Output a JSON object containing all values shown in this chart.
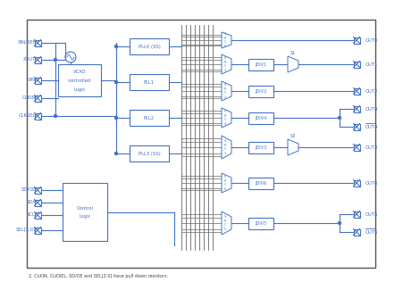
{
  "bg_color": "#ffffff",
  "line_color": "#4472c4",
  "text_color": "#4472c4",
  "gray_color": "#888888",
  "footnote": "2. CLKIN, CLKSEL, SD/OE and SEL[2:0] have pull down resistors.",
  "inputs_left": [
    "XIN/REF",
    "XOUT",
    "VIN",
    "CLKIN",
    "CLKSEL"
  ],
  "inputs_ctrl": [
    "SD/OE",
    "SDA",
    "SCL",
    "SEL[2:0]"
  ],
  "pll_labels": [
    "PLL0 (SS)",
    "PLL1",
    "PLL2",
    "PLL3 (SS)"
  ],
  "src_labels": [
    "SRC0",
    "SRC1",
    "SRC2",
    "SRC4",
    "SRC3",
    "SRC6",
    "SRC5"
  ],
  "jdiv_labels": [
    "JDIV1",
    "JDIV2",
    "JDIV4",
    "JDIV3",
    "JDIV6",
    "JDIV5"
  ],
  "sel_labels": [
    "S1",
    "S3"
  ],
  "out_labels": [
    "OUT0",
    "OUT1",
    "OUT2",
    "OUT4",
    "OUT4",
    "OUT3",
    "OUT6",
    "OUT5",
    "OUT5"
  ],
  "out_bar": [
    false,
    false,
    false,
    false,
    true,
    false,
    false,
    false,
    true
  ]
}
